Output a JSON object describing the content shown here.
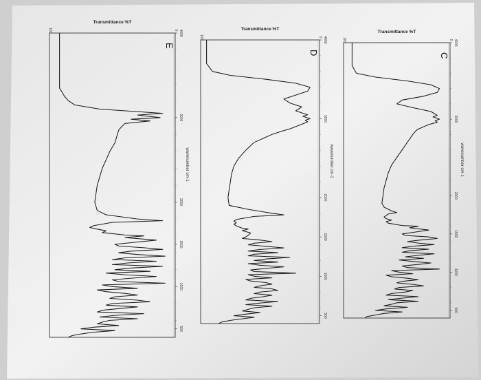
{
  "chart_data": [
    {
      "type": "line",
      "panel_letter": "C",
      "title_top": "Transmittance %T",
      "xlabel": "wavenumber cm-1",
      "x_ticks": [
        "4000",
        "3000",
        "2000",
        "1500",
        "1000",
        "500"
      ],
      "y_ticks": [
        "100",
        "0"
      ],
      "xlim": [
        4000,
        400
      ],
      "ylim": [
        0,
        100
      ],
      "grid": false,
      "x": [
        4000,
        3700,
        3600,
        3550,
        3500,
        3450,
        3400,
        3350,
        3300,
        3250,
        3200,
        3150,
        3100,
        3050,
        3030,
        3000,
        2980,
        2960,
        2930,
        2900,
        2870,
        2850,
        2800,
        2700,
        2600,
        2500,
        2400,
        2300,
        2200,
        2100,
        2000,
        1900,
        1850,
        1800,
        1780,
        1760,
        1720,
        1700,
        1680,
        1660,
        1640,
        1610,
        1600,
        1580,
        1550,
        1520,
        1500,
        1480,
        1460,
        1440,
        1420,
        1400,
        1380,
        1360,
        1340,
        1320,
        1300,
        1280,
        1260,
        1240,
        1220,
        1200,
        1180,
        1160,
        1140,
        1120,
        1100,
        1080,
        1060,
        1040,
        1020,
        1000,
        980,
        960,
        940,
        920,
        900,
        880,
        860,
        840,
        820,
        800,
        780,
        760,
        740,
        720,
        700,
        680,
        660,
        640,
        620,
        600,
        580,
        560,
        540,
        520,
        500,
        480,
        460,
        440,
        420,
        400
      ],
      "y": [
        92,
        92,
        88,
        70,
        40,
        18,
        10,
        12,
        25,
        45,
        50,
        35,
        18,
        12,
        16,
        10,
        14,
        12,
        20,
        25,
        30,
        32,
        35,
        40,
        45,
        50,
        55,
        58,
        60,
        62,
        63,
        64,
        62,
        55,
        50,
        58,
        62,
        60,
        55,
        60,
        58,
        45,
        30,
        38,
        20,
        35,
        45,
        42,
        20,
        12,
        28,
        40,
        30,
        15,
        35,
        45,
        20,
        38,
        45,
        15,
        30,
        42,
        25,
        48,
        35,
        18,
        30,
        45,
        40,
        10,
        55,
        48,
        35,
        60,
        55,
        40,
        30,
        45,
        50,
        35,
        25,
        48,
        52,
        35,
        42,
        55,
        60,
        30,
        45,
        58,
        30,
        50,
        55,
        62,
        40,
        60,
        70,
        45,
        62,
        70,
        78,
        80
      ]
    },
    {
      "type": "line",
      "panel_letter": "D",
      "title_top": "Transmittance %T",
      "xlabel": "wavenumber cm-1",
      "x_ticks": [
        "4000",
        "3000",
        "2000",
        "1500",
        "1000",
        "500"
      ],
      "y_ticks": [
        "100",
        "0"
      ],
      "xlim": [
        4000,
        400
      ],
      "ylim": [
        0,
        100
      ],
      "grid": false,
      "x": [
        4000,
        3700,
        3600,
        3550,
        3500,
        3450,
        3400,
        3350,
        3300,
        3250,
        3200,
        3150,
        3100,
        3050,
        3030,
        3000,
        2980,
        2960,
        2930,
        2900,
        2870,
        2850,
        2800,
        2700,
        2600,
        2500,
        2400,
        2300,
        2200,
        2100,
        2000,
        1900,
        1850,
        1800,
        1780,
        1760,
        1720,
        1700,
        1680,
        1660,
        1640,
        1610,
        1600,
        1580,
        1550,
        1520,
        1500,
        1480,
        1460,
        1440,
        1420,
        1400,
        1380,
        1360,
        1340,
        1320,
        1300,
        1280,
        1260,
        1240,
        1220,
        1200,
        1180,
        1160,
        1140,
        1120,
        1100,
        1080,
        1060,
        1040,
        1020,
        1000,
        980,
        960,
        940,
        920,
        900,
        880,
        860,
        840,
        820,
        800,
        780,
        760,
        740,
        720,
        700,
        680,
        660,
        640,
        620,
        600,
        580,
        560,
        540,
        520,
        500,
        480,
        460,
        440,
        420,
        400
      ],
      "y": [
        95,
        95,
        90,
        75,
        45,
        20,
        8,
        10,
        20,
        30,
        25,
        15,
        20,
        10,
        14,
        8,
        12,
        10,
        15,
        20,
        25,
        30,
        40,
        55,
        62,
        68,
        72,
        74,
        75,
        76,
        77,
        76,
        60,
        40,
        30,
        55,
        70,
        72,
        70,
        72,
        70,
        65,
        60,
        65,
        58,
        60,
        62,
        65,
        50,
        40,
        55,
        60,
        45,
        30,
        50,
        60,
        35,
        55,
        60,
        25,
        45,
        55,
        35,
        60,
        50,
        30,
        45,
        58,
        55,
        20,
        60,
        55,
        40,
        62,
        58,
        45,
        40,
        50,
        55,
        40,
        35,
        50,
        55,
        40,
        48,
        58,
        62,
        35,
        50,
        62,
        40,
        55,
        60,
        65,
        50,
        62,
        72,
        55,
        65,
        75,
        82,
        85
      ]
    },
    {
      "type": "line",
      "panel_letter": "E",
      "title_top": "Transmittance %T",
      "xlabel": "wavenumber cm-1",
      "x_ticks": [
        "4000",
        "3000",
        "2000",
        "1500",
        "1000",
        "500"
      ],
      "y_ticks": [
        "100",
        "0"
      ],
      "xlim": [
        4000,
        400
      ],
      "ylim": [
        0,
        100
      ],
      "grid": false,
      "x": [
        4000,
        3700,
        3600,
        3550,
        3500,
        3450,
        3400,
        3350,
        3300,
        3250,
        3200,
        3150,
        3100,
        3050,
        3030,
        3000,
        2980,
        2960,
        2930,
        2900,
        2870,
        2850,
        2800,
        2700,
        2600,
        2500,
        2400,
        2300,
        2200,
        2100,
        2000,
        1900,
        1850,
        1800,
        1780,
        1760,
        1720,
        1700,
        1680,
        1660,
        1640,
        1610,
        1600,
        1580,
        1550,
        1520,
        1500,
        1480,
        1460,
        1440,
        1420,
        1400,
        1380,
        1360,
        1340,
        1320,
        1300,
        1280,
        1260,
        1240,
        1220,
        1200,
        1180,
        1160,
        1140,
        1120,
        1100,
        1080,
        1060,
        1040,
        1020,
        1000,
        980,
        960,
        940,
        920,
        900,
        880,
        860,
        840,
        820,
        800,
        780,
        760,
        740,
        720,
        700,
        680,
        660,
        640,
        620,
        600,
        580,
        560,
        540,
        520,
        500,
        480,
        460,
        440,
        420,
        400
      ],
      "y": [
        92,
        92,
        92,
        92,
        92,
        92,
        92,
        92,
        90,
        88,
        85,
        80,
        60,
        10,
        30,
        12,
        35,
        20,
        40,
        42,
        44,
        45,
        46,
        48,
        52,
        55,
        58,
        60,
        62,
        63,
        64,
        62,
        55,
        30,
        10,
        50,
        65,
        68,
        62,
        55,
        58,
        40,
        25,
        40,
        15,
        35,
        48,
        45,
        25,
        10,
        35,
        45,
        30,
        8,
        40,
        50,
        15,
        38,
        50,
        10,
        35,
        48,
        20,
        55,
        40,
        15,
        35,
        50,
        45,
        8,
        58,
        50,
        30,
        62,
        55,
        40,
        30,
        48,
        52,
        30,
        20,
        50,
        55,
        30,
        45,
        58,
        62,
        25,
        48,
        60,
        30,
        52,
        58,
        62,
        45,
        65,
        75,
        48,
        65,
        75,
        82,
        85
      ]
    }
  ]
}
